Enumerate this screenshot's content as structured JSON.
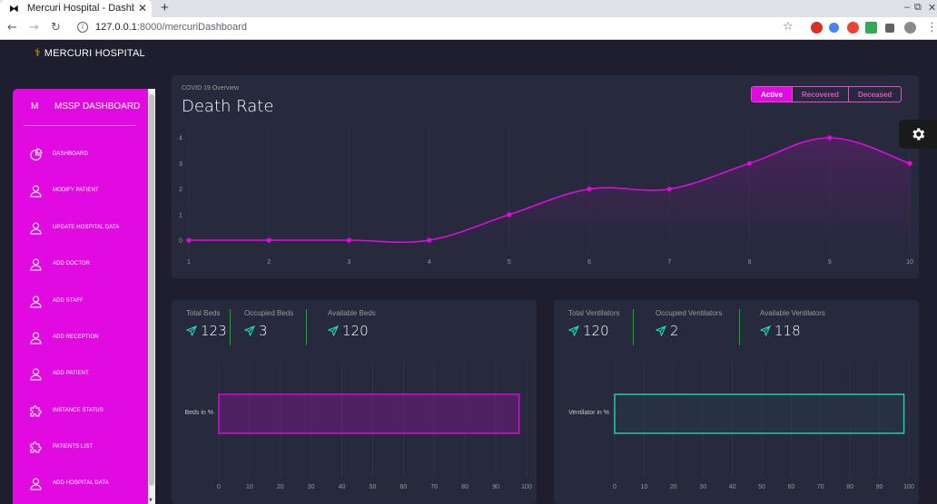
{
  "browser": {
    "tab_title": "Mercuri Hospital - Dashbo",
    "new_tab": "+",
    "url_host": "127.0.0.1",
    "url_rest": ":8000/mercuriDashboard"
  },
  "brand": {
    "name": "MERCURI HOSPITAL"
  },
  "sidebar": {
    "initial": "M",
    "title": "MSSP DASHBOARD",
    "items": [
      {
        "label": "DASHBOARD",
        "icon": "pie-chart-icon"
      },
      {
        "label": "MODIFY PATIENT",
        "icon": "user-icon"
      },
      {
        "label": "UPDATE HOSPITAL DATA",
        "icon": "user-icon"
      },
      {
        "label": "ADD DOCTOR",
        "icon": "user-icon"
      },
      {
        "label": "ADD STAFF",
        "icon": "user-icon"
      },
      {
        "label": "ADD RECEPTION",
        "icon": "user-icon"
      },
      {
        "label": "ADD PATIENT",
        "icon": "user-icon"
      },
      {
        "label": "INSTANCE STATUS",
        "icon": "puzzle-icon"
      },
      {
        "label": "PATIENTS LIST",
        "icon": "puzzle-icon"
      },
      {
        "label": "ADD HOSPITAL DATA",
        "icon": "user-icon"
      }
    ]
  },
  "overview": {
    "subtitle": "COVID 19 Overview",
    "title": "Death Rate",
    "buttons": [
      "Active",
      "Recovered",
      "Deceased"
    ],
    "selected": "Active"
  },
  "beds": {
    "stats": [
      {
        "label": "Total Beds",
        "value": "123"
      },
      {
        "label": "Occupied Beds",
        "value": "3"
      },
      {
        "label": "Available Beds",
        "value": "120"
      }
    ]
  },
  "ventilators": {
    "stats": [
      {
        "label": "Total Ventilators",
        "value": "120"
      },
      {
        "label": "Occupied Ventilators",
        "value": "2"
      },
      {
        "label": "Available Ventilators",
        "value": "118"
      }
    ]
  },
  "colors": {
    "page_bg": "#1e1e2f",
    "card_bg": "#27293d",
    "sidebar_bg": "#e10ae1",
    "accent_pink": "#e14eca",
    "accent_teal": "#1fd8b8",
    "separator_green": "#00b81c"
  },
  "chart_data": [
    {
      "type": "line",
      "x": [
        1,
        2,
        3,
        4,
        5,
        6,
        7,
        8,
        9,
        10
      ],
      "series": [
        {
          "values": [
            0,
            0,
            0,
            0,
            1,
            2,
            2,
            3,
            4,
            3
          ],
          "color": "#e10ae1"
        }
      ],
      "xlabel": "",
      "ylabel": "",
      "yticks": [
        0,
        1,
        2,
        3,
        4
      ],
      "ylim": [
        0,
        4
      ],
      "grid": true,
      "smooth": true
    },
    {
      "type": "bar",
      "orientation": "horizontal",
      "categories": [
        "Beds in %"
      ],
      "values": [
        97.56
      ],
      "xlim": [
        0,
        100
      ],
      "xticks": [
        0,
        10,
        20,
        30,
        40,
        50,
        60,
        70,
        80,
        90,
        100
      ],
      "color": "#e10ae1"
    },
    {
      "type": "bar",
      "orientation": "horizontal",
      "categories": [
        "Ventilator in %"
      ],
      "values": [
        98.33
      ],
      "xlim": [
        0,
        100
      ],
      "xticks": [
        0,
        10,
        20,
        30,
        40,
        50,
        60,
        70,
        80,
        90,
        100
      ],
      "color": "#1fd8b8"
    }
  ]
}
